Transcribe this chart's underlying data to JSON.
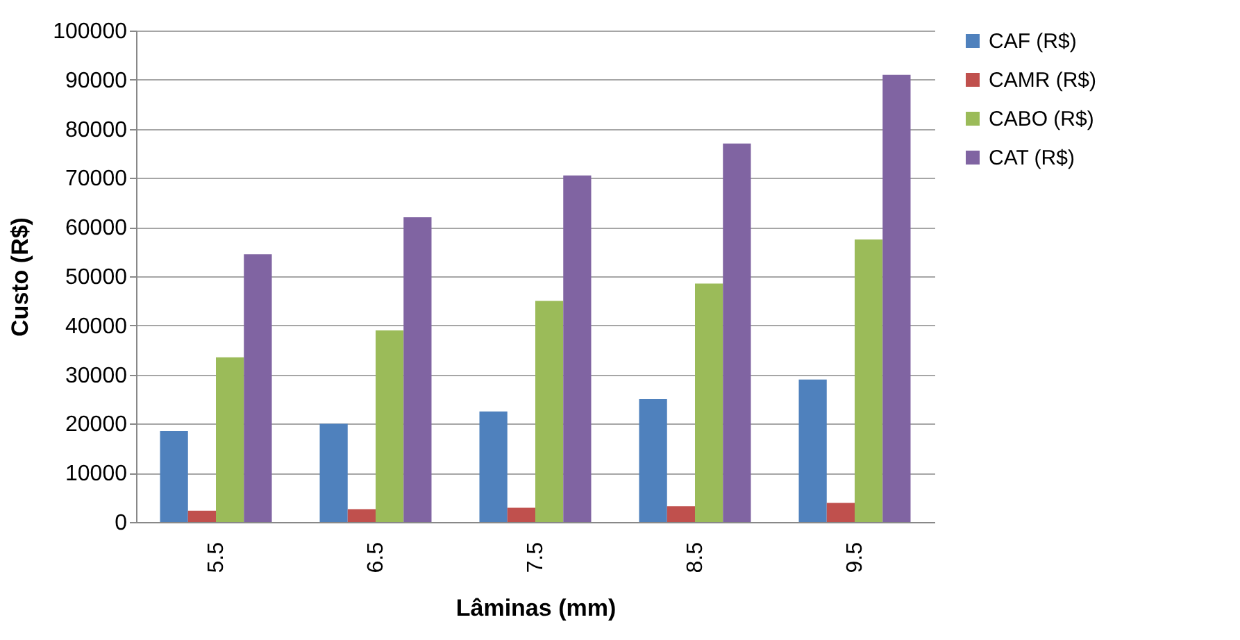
{
  "chart_data": {
    "type": "bar",
    "xlabel": "Lâminas (mm)",
    "ylabel": "Custo (R$)",
    "categories": [
      "5.5",
      "6.5",
      "7.5",
      "8.5",
      "9.5"
    ],
    "series": [
      {
        "name": "CAF (R$)",
        "color": "#4f81bd",
        "values": [
          18500,
          20000,
          22500,
          25000,
          29000
        ]
      },
      {
        "name": "CAMR (R$)",
        "color": "#c0504d",
        "values": [
          2300,
          2600,
          2900,
          3200,
          3900
        ]
      },
      {
        "name": "CABO (R$)",
        "color": "#9bbb59",
        "values": [
          33500,
          39000,
          45000,
          48500,
          57500
        ]
      },
      {
        "name": "CAT (R$)",
        "color": "#8064a2",
        "values": [
          54500,
          62000,
          70500,
          77000,
          91000
        ]
      }
    ],
    "ylim": [
      0,
      100000
    ],
    "yticks": [
      0,
      10000,
      20000,
      30000,
      40000,
      50000,
      60000,
      70000,
      80000,
      90000,
      100000
    ],
    "grid": "y",
    "legend": "right"
  }
}
